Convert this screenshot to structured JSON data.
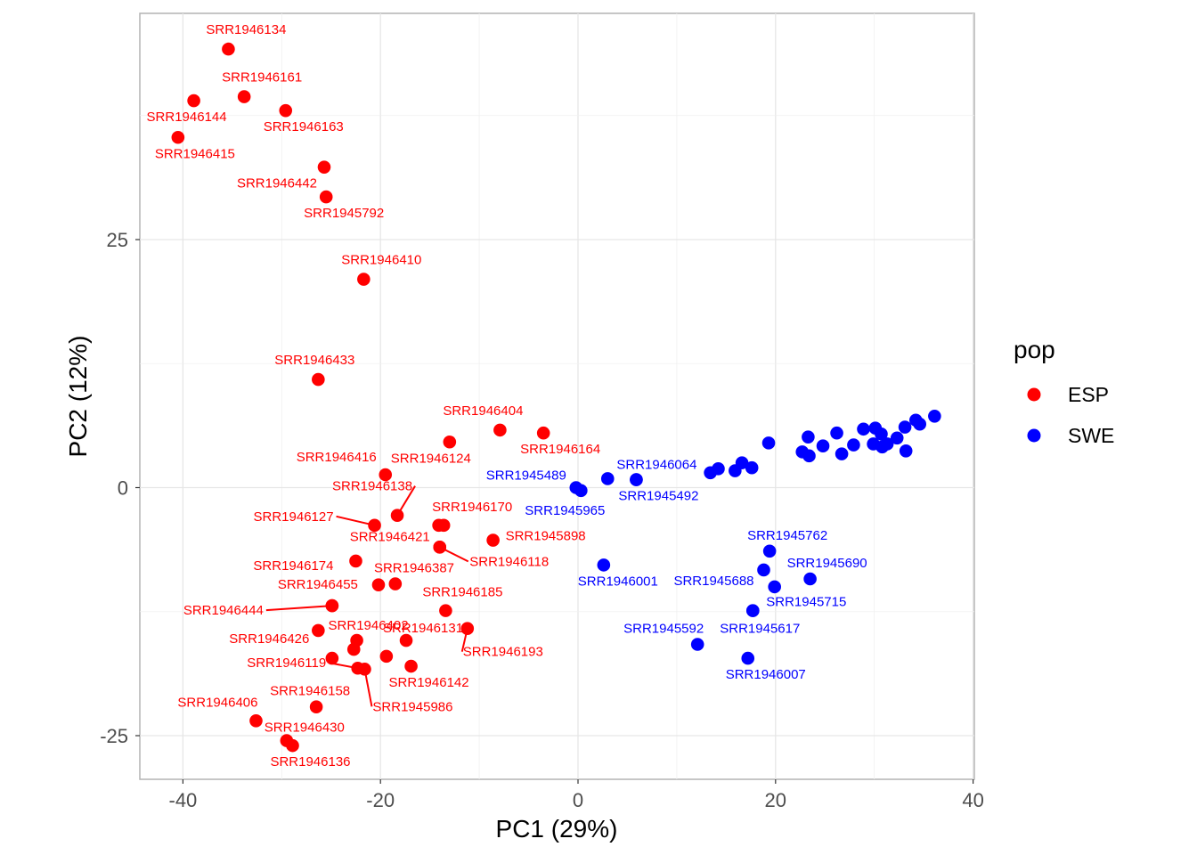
{
  "chart_data": {
    "type": "scatter",
    "xlabel": "PC1 (29%)",
    "ylabel": "PC2 (12%)",
    "xlim": [
      -44,
      40
    ],
    "ylim": [
      -29.5,
      48
    ],
    "xticks": [
      -40,
      -20,
      0,
      20,
      40
    ],
    "xtick_labels": [
      "-40",
      "-20",
      "0",
      "20",
      "40"
    ],
    "yticks": [
      -25,
      0,
      25
    ],
    "ytick_labels": [
      "-25",
      "0",
      "25"
    ],
    "grid": true,
    "legend": {
      "title": "pop",
      "position": "right",
      "entries": [
        {
          "name": "ESP",
          "color": "#ff0000"
        },
        {
          "name": "SWE",
          "color": "#0000ff"
        }
      ]
    },
    "series": [
      {
        "name": "ESP",
        "color": "#ff0000",
        "points": [
          {
            "x": -35.4,
            "y": 44.2,
            "label": "SRR1946134"
          },
          {
            "x": -33.8,
            "y": 39.4,
            "label": "SRR1946161"
          },
          {
            "x": -38.9,
            "y": 39.0,
            "label": "SRR1946144"
          },
          {
            "x": -29.6,
            "y": 38.0,
            "label": "SRR1946163"
          },
          {
            "x": -40.5,
            "y": 35.3,
            "label": "SRR1946415"
          },
          {
            "x": -25.7,
            "y": 32.3,
            "label": "SRR1946442"
          },
          {
            "x": -25.5,
            "y": 29.3,
            "label": "SRR1945792"
          },
          {
            "x": -21.7,
            "y": 21.0,
            "label": "SRR1946410"
          },
          {
            "x": -26.3,
            "y": 10.9,
            "label": "SRR1946433"
          },
          {
            "x": -7.9,
            "y": 5.8,
            "label": "SRR1946404"
          },
          {
            "x": -3.5,
            "y": 5.5,
            "label": "SRR1946164"
          },
          {
            "x": -13.0,
            "y": 4.6,
            "label": "SRR1946124"
          },
          {
            "x": -19.5,
            "y": 1.3,
            "label": "SRR1946416"
          },
          {
            "x": -18.3,
            "y": -2.8,
            "label": "SRR1946138"
          },
          {
            "x": -20.6,
            "y": -3.8,
            "label": "SRR1946127"
          },
          {
            "x": -14.1,
            "y": -3.8,
            "label": ""
          },
          {
            "x": -13.6,
            "y": -3.8,
            "label": "SRR1946170"
          },
          {
            "x": -8.6,
            "y": -5.3,
            "label": "SRR1945898"
          },
          {
            "x": -14.0,
            "y": -6.0,
            "label": "SRR1946421"
          },
          {
            "x": -14.0,
            "y": -6.0,
            "label": "SRR1946118"
          },
          {
            "x": -22.5,
            "y": -7.4,
            "label": "SRR1946174"
          },
          {
            "x": -20.2,
            "y": -9.8,
            "label": "SRR1946387"
          },
          {
            "x": -18.5,
            "y": -9.7,
            "label": ""
          },
          {
            "x": -13.4,
            "y": -12.4,
            "label": "SRR1946185"
          },
          {
            "x": -24.9,
            "y": -11.9,
            "label": "SRR1946455"
          },
          {
            "x": -24.9,
            "y": -11.9,
            "label": "SRR1946444"
          },
          {
            "x": -26.3,
            "y": -14.4,
            "label": "SRR1946426"
          },
          {
            "x": -22.4,
            "y": -15.4,
            "label": "SRR1946402"
          },
          {
            "x": -17.4,
            "y": -15.4,
            "label": "SRR1946131"
          },
          {
            "x": -11.2,
            "y": -14.2,
            "label": "SRR1946193"
          },
          {
            "x": -22.7,
            "y": -16.3,
            "label": ""
          },
          {
            "x": -24.9,
            "y": -17.2,
            "label": ""
          },
          {
            "x": -19.4,
            "y": -17.0,
            "label": ""
          },
          {
            "x": -16.9,
            "y": -18.0,
            "label": "SRR1946142"
          },
          {
            "x": -22.3,
            "y": -18.2,
            "label": "SRR1946119"
          },
          {
            "x": -21.6,
            "y": -18.3,
            "label": "SRR1945986"
          },
          {
            "x": -26.5,
            "y": -22.1,
            "label": "SRR1946158"
          },
          {
            "x": -32.6,
            "y": -23.5,
            "label": "SRR1946406"
          },
          {
            "x": -29.5,
            "y": -25.5,
            "label": "SRR1946430"
          },
          {
            "x": -28.9,
            "y": -26.0,
            "label": "SRR1946136"
          }
        ]
      },
      {
        "name": "SWE",
        "color": "#0000ff",
        "points": [
          {
            "x": -0.2,
            "y": 0.0,
            "label": "SRR1945489"
          },
          {
            "x": 0.3,
            "y": -0.3,
            "label": "SRR1945965"
          },
          {
            "x": 3.0,
            "y": 0.9,
            "label": ""
          },
          {
            "x": 5.9,
            "y": 0.8,
            "label": "SRR1946064"
          },
          {
            "x": 5.9,
            "y": 0.8,
            "label": "SRR1945492"
          },
          {
            "x": 13.4,
            "y": 1.5,
            "label": ""
          },
          {
            "x": 14.2,
            "y": 1.9,
            "label": ""
          },
          {
            "x": 15.9,
            "y": 1.7,
            "label": ""
          },
          {
            "x": 16.6,
            "y": 2.5,
            "label": ""
          },
          {
            "x": 17.6,
            "y": 2.0,
            "label": ""
          },
          {
            "x": 19.3,
            "y": 4.5,
            "label": ""
          },
          {
            "x": 22.7,
            "y": 3.6,
            "label": ""
          },
          {
            "x": 23.3,
            "y": 5.1,
            "label": ""
          },
          {
            "x": 23.4,
            "y": 3.2,
            "label": ""
          },
          {
            "x": 24.8,
            "y": 4.2,
            "label": ""
          },
          {
            "x": 26.2,
            "y": 5.5,
            "label": ""
          },
          {
            "x": 26.7,
            "y": 3.4,
            "label": ""
          },
          {
            "x": 27.9,
            "y": 4.3,
            "label": ""
          },
          {
            "x": 28.9,
            "y": 5.9,
            "label": ""
          },
          {
            "x": 29.9,
            "y": 4.4,
            "label": ""
          },
          {
            "x": 30.1,
            "y": 6.0,
            "label": ""
          },
          {
            "x": 30.7,
            "y": 5.4,
            "label": ""
          },
          {
            "x": 30.8,
            "y": 4.1,
            "label": ""
          },
          {
            "x": 31.3,
            "y": 4.4,
            "label": ""
          },
          {
            "x": 32.3,
            "y": 5.0,
            "label": ""
          },
          {
            "x": 33.1,
            "y": 6.1,
            "label": ""
          },
          {
            "x": 33.2,
            "y": 3.7,
            "label": ""
          },
          {
            "x": 34.2,
            "y": 6.8,
            "label": ""
          },
          {
            "x": 34.6,
            "y": 6.4,
            "label": ""
          },
          {
            "x": 36.1,
            "y": 7.2,
            "label": ""
          },
          {
            "x": 2.6,
            "y": -7.8,
            "label": "SRR1946001"
          },
          {
            "x": 19.4,
            "y": -6.4,
            "label": "SRR1945762"
          },
          {
            "x": 18.8,
            "y": -8.3,
            "label": "SRR1945688"
          },
          {
            "x": 23.5,
            "y": -9.2,
            "label": "SRR1945690"
          },
          {
            "x": 19.9,
            "y": -10.0,
            "label": ""
          },
          {
            "x": 17.7,
            "y": -12.4,
            "label": "SRR1945715"
          },
          {
            "x": 12.1,
            "y": -15.8,
            "label": "SRR1945592"
          },
          {
            "x": 17.7,
            "y": -12.4,
            "label": "SRR1945617"
          },
          {
            "x": 17.2,
            "y": -17.2,
            "label": "SRR1946007"
          }
        ]
      }
    ]
  }
}
